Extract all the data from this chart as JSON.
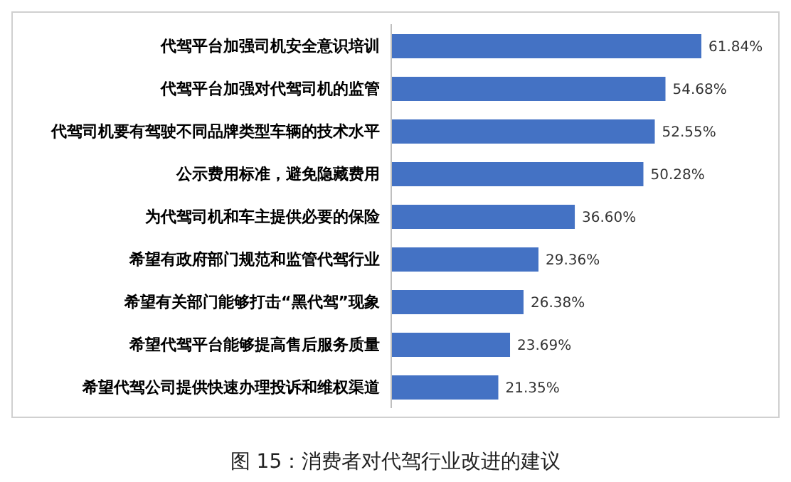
{
  "chart_data": {
    "type": "bar",
    "orientation": "horizontal",
    "title": "图 15：消费者对代驾行业改进的建议",
    "categories": [
      "代驾平台加强司机安全意识培训",
      "代驾平台加强对代驾司机的监管",
      "代驾司机要有驾驶不同品牌类型车辆的技术水平",
      "公示费用标准，避免隐藏费用",
      "为代驾司机和车主提供必要的保险",
      "希望有政府部门规范和监管代驾行业",
      "希望有关部门能够打击“黑代驾”现象",
      "希望代驾平台能够提高售后服务质量",
      "希望代驾公司提供快速办理投诉和维权渠道"
    ],
    "values": [
      61.84,
      54.68,
      52.55,
      50.28,
      36.6,
      29.36,
      26.38,
      23.69,
      21.35
    ],
    "value_labels": [
      "61.84%",
      "54.68%",
      "52.55%",
      "50.28%",
      "36.60%",
      "29.36%",
      "26.38%",
      "23.69%",
      "21.35%"
    ],
    "color": "#4472c4"
  }
}
